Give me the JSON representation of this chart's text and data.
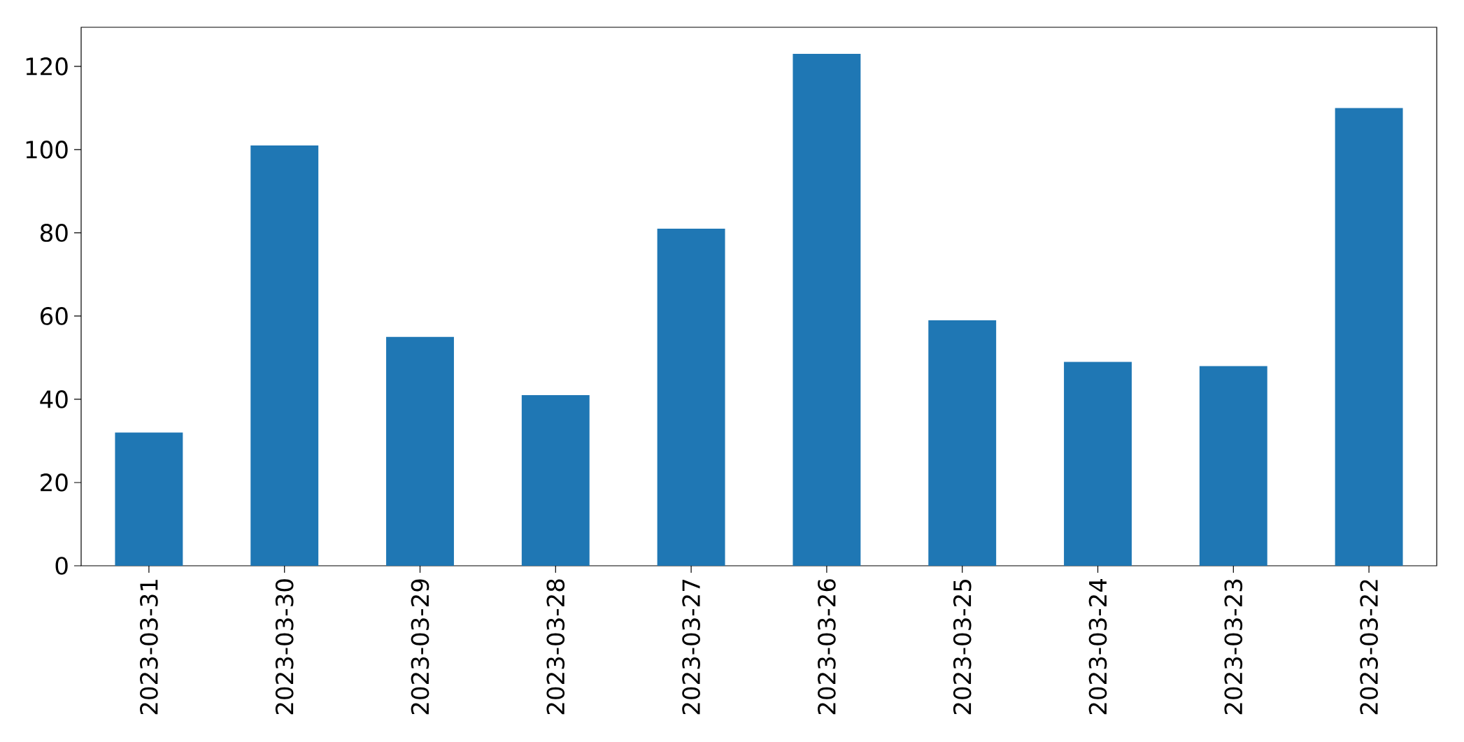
{
  "chart_data": {
    "type": "bar",
    "categories": [
      "2023-03-31",
      "2023-03-30",
      "2023-03-29",
      "2023-03-28",
      "2023-03-27",
      "2023-03-26",
      "2023-03-25",
      "2023-03-24",
      "2023-03-23",
      "2023-03-22"
    ],
    "values": [
      32,
      101,
      55,
      41,
      81,
      123,
      59,
      49,
      48,
      110
    ],
    "color": "#1f77b4",
    "ylim": [
      0,
      129.4
    ],
    "yticks": [
      0,
      20,
      40,
      60,
      80,
      100,
      120
    ]
  }
}
